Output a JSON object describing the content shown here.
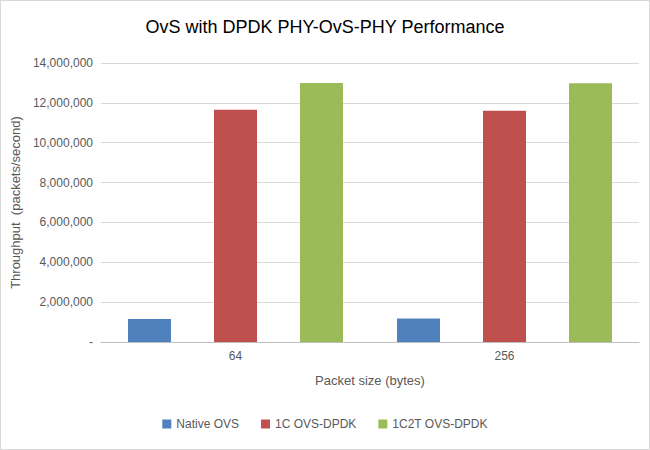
{
  "chart_data": {
    "type": "bar",
    "title": "OvS with DPDK PHY-OvS-PHY Performance",
    "x_label": "Packet size (bytes)",
    "y_label": "Throughput  (packets/second)",
    "categories": [
      "64",
      "256"
    ],
    "series": [
      {
        "name": "Native OVS",
        "color": "#4f81bd",
        "values": [
          1150000,
          1180000
        ]
      },
      {
        "name": "1C OVS-DPDK",
        "color": "#c0504d",
        "values": [
          11650000,
          11600000
        ]
      },
      {
        "name": "1C2T OVS-DPDK",
        "color": "#9bbb59",
        "values": [
          13000000,
          12980000
        ]
      }
    ],
    "ylim": [
      0,
      14000000
    ],
    "yticks": [
      {
        "value": 0,
        "label": "-"
      },
      {
        "value": 2000000,
        "label": "2,000,000"
      },
      {
        "value": 4000000,
        "label": "4,000,000"
      },
      {
        "value": 6000000,
        "label": "6,000,000"
      },
      {
        "value": 8000000,
        "label": "8,000,000"
      },
      {
        "value": 10000000,
        "label": "10,000,000"
      },
      {
        "value": 12000000,
        "label": "12,000,000"
      },
      {
        "value": 14000000,
        "label": "14,000,000"
      }
    ],
    "grid": true,
    "legend": "bottom"
  }
}
